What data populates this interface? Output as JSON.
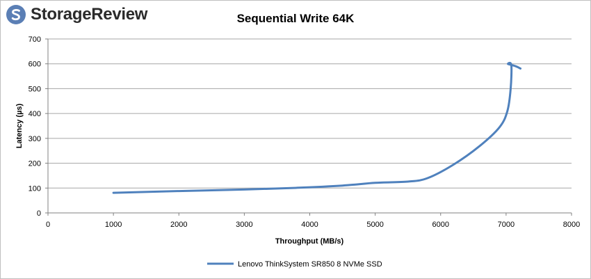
{
  "brand": {
    "name": "StorageReview",
    "icon": "storagereview-logo-icon",
    "icon_color": "#5b7fb5"
  },
  "chart_data": {
    "type": "line",
    "title": "Sequential Write 64K",
    "xlabel": "Throughput (MB/s)",
    "ylabel": "Latency (µs)",
    "xlim": [
      0,
      8000
    ],
    "ylim": [
      0,
      700
    ],
    "xticks": [
      0,
      1000,
      2000,
      3000,
      4000,
      5000,
      6000,
      7000,
      8000
    ],
    "yticks": [
      0,
      100,
      200,
      300,
      400,
      500,
      600,
      700
    ],
    "grid": true,
    "legend_position": "bottom-center",
    "series": [
      {
        "name": "Lenovo ThinkSystem SR850 8 NVMe SSD",
        "color": "#4f81bd",
        "points": [
          {
            "x": 1000,
            "y": 81
          },
          {
            "x": 2000,
            "y": 88
          },
          {
            "x": 3000,
            "y": 94
          },
          {
            "x": 3800,
            "y": 101
          },
          {
            "x": 4500,
            "y": 110
          },
          {
            "x": 5000,
            "y": 121
          },
          {
            "x": 5500,
            "y": 126
          },
          {
            "x": 5800,
            "y": 140
          },
          {
            "x": 6200,
            "y": 195
          },
          {
            "x": 6600,
            "y": 270
          },
          {
            "x": 6900,
            "y": 345
          },
          {
            "x": 7020,
            "y": 410
          },
          {
            "x": 7070,
            "y": 500
          },
          {
            "x": 7080,
            "y": 595
          },
          {
            "x": 7030,
            "y": 599
          },
          {
            "x": 7150,
            "y": 590
          },
          {
            "x": 7220,
            "y": 581
          }
        ]
      }
    ]
  }
}
